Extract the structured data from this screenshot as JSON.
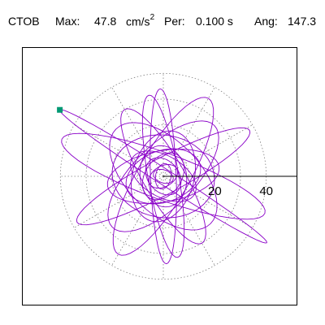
{
  "header": {
    "station": "CTOB",
    "max_label": "Max:",
    "max_value": "47.8",
    "max_unit": "cm/s",
    "max_exp": "2",
    "per_label": "Per:",
    "per_value": "0.100 s",
    "ang_label": "Ang:",
    "ang_value": "147.3"
  },
  "chart_data": {
    "type": "polar-orbit",
    "max_amplitude": 47.8,
    "max_unit": "cm/s^2",
    "period_s": 0.1,
    "angle_deg": 147.3,
    "radial_ticks": [
      20,
      40
    ],
    "radial_ring_values": [
      10,
      20,
      30,
      40
    ],
    "spoke_angles_deg": [
      0,
      30,
      60,
      90,
      120,
      150,
      180,
      210,
      240,
      270,
      300,
      330
    ],
    "colors": {
      "trace": "#8a00c8",
      "max_marker": "#009973",
      "grid": "#7f7f7f",
      "axis": "#000000"
    },
    "orbit_loops": [
      {
        "a": 47.8,
        "b": 3.0,
        "rot": 147.3
      },
      {
        "a": 42,
        "b": 9,
        "rot": 160
      },
      {
        "a": 38,
        "b": 7,
        "rot": 28
      },
      {
        "a": 35,
        "b": 10,
        "rot": 60
      },
      {
        "a": 32,
        "b": 6,
        "rot": 100
      },
      {
        "a": 30,
        "b": 8,
        "rot": 120
      },
      {
        "a": 34,
        "b": 5,
        "rot": 92
      },
      {
        "a": 28,
        "b": 12,
        "rot": 45
      },
      {
        "a": 26,
        "b": 14,
        "rot": 135
      },
      {
        "a": 22,
        "b": 10,
        "rot": 10
      },
      {
        "a": 20,
        "b": 16,
        "rot": 170
      },
      {
        "a": 18,
        "b": 12,
        "rot": 75
      },
      {
        "a": 15,
        "b": 10,
        "rot": 20
      },
      {
        "a": 14,
        "b": 8,
        "rot": 150
      },
      {
        "a": 12,
        "b": 9,
        "rot": 100
      },
      {
        "a": 10,
        "b": 7,
        "rot": 55
      },
      {
        "a": 8,
        "b": 6,
        "rot": 130
      },
      {
        "a": 6,
        "b": 4,
        "rot": 30
      },
      {
        "a": 5,
        "b": 3,
        "rot": 80
      },
      {
        "a": 4,
        "b": 2.5,
        "rot": 160
      }
    ]
  }
}
